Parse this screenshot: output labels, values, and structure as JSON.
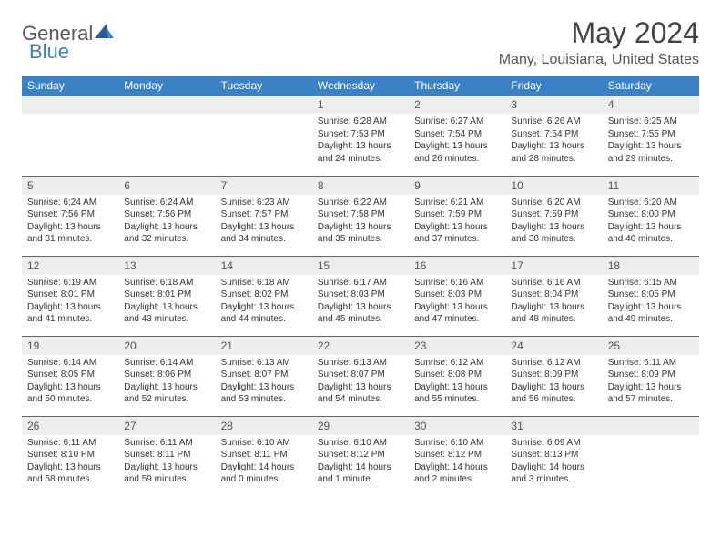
{
  "logo": {
    "text1": "General",
    "text2": "Blue"
  },
  "title": "May 2024",
  "location": "Many, Louisiana, United States",
  "colors": {
    "header_bg": "#3b82c4",
    "header_text": "#ffffff",
    "row_divider": "#3b6fa0",
    "daynum_bg": "#eceded",
    "logo_gray": "#5a5a5a",
    "logo_blue": "#3b7fc4"
  },
  "weekdays": [
    "Sunday",
    "Monday",
    "Tuesday",
    "Wednesday",
    "Thursday",
    "Friday",
    "Saturday"
  ],
  "weeks": [
    [
      null,
      null,
      null,
      {
        "d": "1",
        "sr": "6:28 AM",
        "ss": "7:53 PM",
        "dl": "Daylight: 13 hours and 24 minutes."
      },
      {
        "d": "2",
        "sr": "6:27 AM",
        "ss": "7:54 PM",
        "dl": "Daylight: 13 hours and 26 minutes."
      },
      {
        "d": "3",
        "sr": "6:26 AM",
        "ss": "7:54 PM",
        "dl": "Daylight: 13 hours and 28 minutes."
      },
      {
        "d": "4",
        "sr": "6:25 AM",
        "ss": "7:55 PM",
        "dl": "Daylight: 13 hours and 29 minutes."
      }
    ],
    [
      {
        "d": "5",
        "sr": "6:24 AM",
        "ss": "7:56 PM",
        "dl": "Daylight: 13 hours and 31 minutes."
      },
      {
        "d": "6",
        "sr": "6:24 AM",
        "ss": "7:56 PM",
        "dl": "Daylight: 13 hours and 32 minutes."
      },
      {
        "d": "7",
        "sr": "6:23 AM",
        "ss": "7:57 PM",
        "dl": "Daylight: 13 hours and 34 minutes."
      },
      {
        "d": "8",
        "sr": "6:22 AM",
        "ss": "7:58 PM",
        "dl": "Daylight: 13 hours and 35 minutes."
      },
      {
        "d": "9",
        "sr": "6:21 AM",
        "ss": "7:59 PM",
        "dl": "Daylight: 13 hours and 37 minutes."
      },
      {
        "d": "10",
        "sr": "6:20 AM",
        "ss": "7:59 PM",
        "dl": "Daylight: 13 hours and 38 minutes."
      },
      {
        "d": "11",
        "sr": "6:20 AM",
        "ss": "8:00 PM",
        "dl": "Daylight: 13 hours and 40 minutes."
      }
    ],
    [
      {
        "d": "12",
        "sr": "6:19 AM",
        "ss": "8:01 PM",
        "dl": "Daylight: 13 hours and 41 minutes."
      },
      {
        "d": "13",
        "sr": "6:18 AM",
        "ss": "8:01 PM",
        "dl": "Daylight: 13 hours and 43 minutes."
      },
      {
        "d": "14",
        "sr": "6:18 AM",
        "ss": "8:02 PM",
        "dl": "Daylight: 13 hours and 44 minutes."
      },
      {
        "d": "15",
        "sr": "6:17 AM",
        "ss": "8:03 PM",
        "dl": "Daylight: 13 hours and 45 minutes."
      },
      {
        "d": "16",
        "sr": "6:16 AM",
        "ss": "8:03 PM",
        "dl": "Daylight: 13 hours and 47 minutes."
      },
      {
        "d": "17",
        "sr": "6:16 AM",
        "ss": "8:04 PM",
        "dl": "Daylight: 13 hours and 48 minutes."
      },
      {
        "d": "18",
        "sr": "6:15 AM",
        "ss": "8:05 PM",
        "dl": "Daylight: 13 hours and 49 minutes."
      }
    ],
    [
      {
        "d": "19",
        "sr": "6:14 AM",
        "ss": "8:05 PM",
        "dl": "Daylight: 13 hours and 50 minutes."
      },
      {
        "d": "20",
        "sr": "6:14 AM",
        "ss": "8:06 PM",
        "dl": "Daylight: 13 hours and 52 minutes."
      },
      {
        "d": "21",
        "sr": "6:13 AM",
        "ss": "8:07 PM",
        "dl": "Daylight: 13 hours and 53 minutes."
      },
      {
        "d": "22",
        "sr": "6:13 AM",
        "ss": "8:07 PM",
        "dl": "Daylight: 13 hours and 54 minutes."
      },
      {
        "d": "23",
        "sr": "6:12 AM",
        "ss": "8:08 PM",
        "dl": "Daylight: 13 hours and 55 minutes."
      },
      {
        "d": "24",
        "sr": "6:12 AM",
        "ss": "8:09 PM",
        "dl": "Daylight: 13 hours and 56 minutes."
      },
      {
        "d": "25",
        "sr": "6:11 AM",
        "ss": "8:09 PM",
        "dl": "Daylight: 13 hours and 57 minutes."
      }
    ],
    [
      {
        "d": "26",
        "sr": "6:11 AM",
        "ss": "8:10 PM",
        "dl": "Daylight: 13 hours and 58 minutes."
      },
      {
        "d": "27",
        "sr": "6:11 AM",
        "ss": "8:11 PM",
        "dl": "Daylight: 13 hours and 59 minutes."
      },
      {
        "d": "28",
        "sr": "6:10 AM",
        "ss": "8:11 PM",
        "dl": "Daylight: 14 hours and 0 minutes."
      },
      {
        "d": "29",
        "sr": "6:10 AM",
        "ss": "8:12 PM",
        "dl": "Daylight: 14 hours and 1 minute."
      },
      {
        "d": "30",
        "sr": "6:10 AM",
        "ss": "8:12 PM",
        "dl": "Daylight: 14 hours and 2 minutes."
      },
      {
        "d": "31",
        "sr": "6:09 AM",
        "ss": "8:13 PM",
        "dl": "Daylight: 14 hours and 3 minutes."
      },
      null
    ]
  ],
  "labels": {
    "sunrise": "Sunrise:",
    "sunset": "Sunset:"
  }
}
